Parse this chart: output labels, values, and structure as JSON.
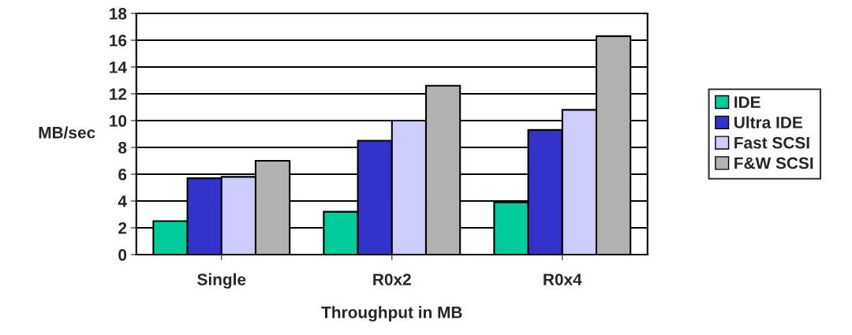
{
  "chart_data": {
    "type": "bar",
    "xlabel": "Throughput in MB",
    "ylabel": "MB/sec",
    "categories": [
      "Single",
      "R0x2",
      "R0x4"
    ],
    "series": [
      {
        "name": "IDE",
        "color": "#00cc99",
        "values": [
          2.5,
          3.2,
          3.9
        ]
      },
      {
        "name": "Ultra IDE",
        "color": "#3333cc",
        "values": [
          5.7,
          8.5,
          9.3
        ]
      },
      {
        "name": "Fast SCSI",
        "color": "#ccccff",
        "values": [
          5.8,
          10.0,
          10.8
        ]
      },
      {
        "name": "F&W SCSI",
        "color": "#b2b2b2",
        "values": [
          7.0,
          12.6,
          16.3
        ]
      }
    ],
    "ylim": [
      0,
      18
    ],
    "yticks": [
      0,
      2,
      4,
      6,
      8,
      10,
      12,
      14,
      16,
      18
    ],
    "grid": "y",
    "legend": "right"
  }
}
